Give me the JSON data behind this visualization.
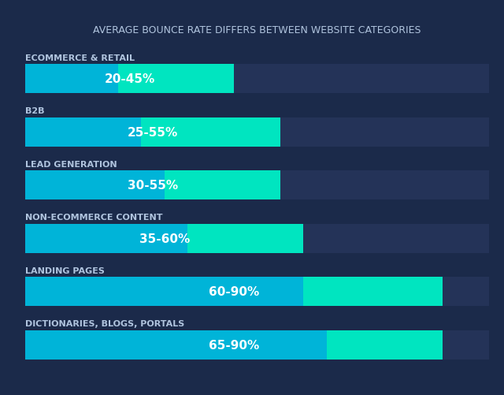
{
  "title": "AVERAGE BOUNCE RATE DIFFERS BETWEEN WEBSITE CATEGORIES",
  "background_color": "#1b2a4a",
  "bar_bg_color": "#243358",
  "bar_min_color": "#00b4d8",
  "bar_range_color": "#00e5c0",
  "text_color": "#ffffff",
  "label_color": "#b0c4de",
  "categories": [
    "ECOMMERCE & RETAIL",
    "B2B",
    "LEAD GENERATION",
    "NON-ECOMMERCE CONTENT",
    "LANDING PAGES",
    "DICTIONARIES, BLOGS, PORTALS"
  ],
  "ranges": [
    [
      20,
      45
    ],
    [
      25,
      55
    ],
    [
      30,
      55
    ],
    [
      35,
      60
    ],
    [
      60,
      90
    ],
    [
      65,
      90
    ]
  ],
  "labels": [
    "20-45%",
    "25-55%",
    "30-55%",
    "35-60%",
    "60-90%",
    "65-90%"
  ],
  "max_value": 100,
  "bar_height": 0.55,
  "title_fontsize": 9,
  "category_fontsize": 8,
  "label_fontsize": 11
}
